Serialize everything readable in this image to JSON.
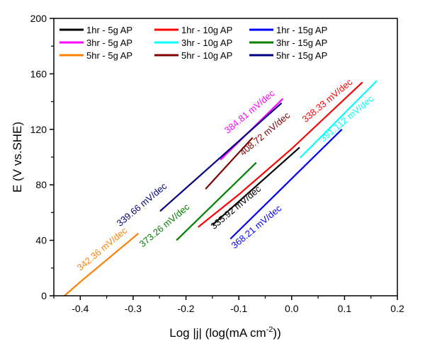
{
  "chart_data": {
    "type": "line",
    "title": "",
    "xlabel": "Log |j| (log(mA cm",
    "xlabel_sup": "-2",
    "xlabel_end": "))",
    "ylabel": "E (V vs.SHE)",
    "xlim": [
      -0.45,
      0.2
    ],
    "ylim": [
      0,
      200
    ],
    "xticks": [
      -0.4,
      -0.3,
      -0.2,
      -0.1,
      0.0,
      0.1,
      0.2
    ],
    "xtick_labels": [
      "-0.4",
      "-0.3",
      "-0.2",
      "-0.1",
      "0.0",
      "0.1",
      "0.2"
    ],
    "yticks": [
      0,
      40,
      80,
      120,
      160,
      200
    ],
    "ytick_labels": [
      "0",
      "40",
      "80",
      "120",
      "160",
      "200"
    ],
    "grid": false,
    "legend_position": "top-left",
    "series": [
      {
        "name": "1hr - 5g AP",
        "color": "#000000",
        "x": [
          -0.15,
          0.015
        ],
        "y": [
          51,
          107
        ],
        "annotation": "335.92 mV/dec",
        "ann_at": [
          -0.102,
          62
        ]
      },
      {
        "name": "3hr - 5g AP",
        "color": "#ff00ff",
        "x": [
          -0.135,
          -0.017
        ],
        "y": [
          98,
          142
        ],
        "annotation": "384.81 mV/dec",
        "ann_at": [
          -0.076,
          131
        ]
      },
      {
        "name": "5hr - 5g AP",
        "color": "#ff8000",
        "x": [
          -0.43,
          -0.4,
          -0.29
        ],
        "y": [
          0,
          10,
          45
        ],
        "annotation": "342.36 mV/dec",
        "ann_at": [
          -0.355,
          32
        ]
      },
      {
        "name": "1hr - 10g AP",
        "color": "#ff0000",
        "x": [
          -0.177,
          -0.1,
          0.0,
          0.134
        ],
        "y": [
          49.5,
          73,
          106,
          154
        ],
        "annotation": "338.33 mV/dec",
        "ann_at": [
          0.071,
          139
        ]
      },
      {
        "name": "3hr - 10g AP",
        "color": "#00ffff",
        "x": [
          0.016,
          0.161
        ],
        "y": [
          99.5,
          155
        ],
        "annotation": "391.112 mV/dec",
        "ann_at": [
          0.108,
          126
        ]
      },
      {
        "name": "5hr - 10g AP",
        "color": "#800000",
        "x": [
          -0.163,
          -0.074
        ],
        "y": [
          77,
          114
        ],
        "annotation": "408.72 mV/dec",
        "ann_at": [
          -0.047,
          115
        ]
      },
      {
        "name": "1hr - 15g AP",
        "color": "#0000ff",
        "x": [
          -0.116,
          0.095
        ],
        "y": [
          41,
          120
        ],
        "annotation": "368.21 mV/dec",
        "ann_at": [
          -0.063,
          48
        ]
      },
      {
        "name": "3hr - 15g AP",
        "color": "#008000",
        "x": [
          -0.218,
          -0.067
        ],
        "y": [
          40,
          96
        ],
        "annotation": "373.26 mV/dec",
        "ann_at": [
          -0.237,
          49
        ]
      },
      {
        "name": "5hr - 15g AP",
        "color": "#000080",
        "x": [
          -0.249,
          -0.019
        ],
        "y": [
          61,
          139
        ],
        "annotation": "339.66 mV/dec",
        "ann_at": [
          -0.28,
          64
        ]
      }
    ]
  }
}
